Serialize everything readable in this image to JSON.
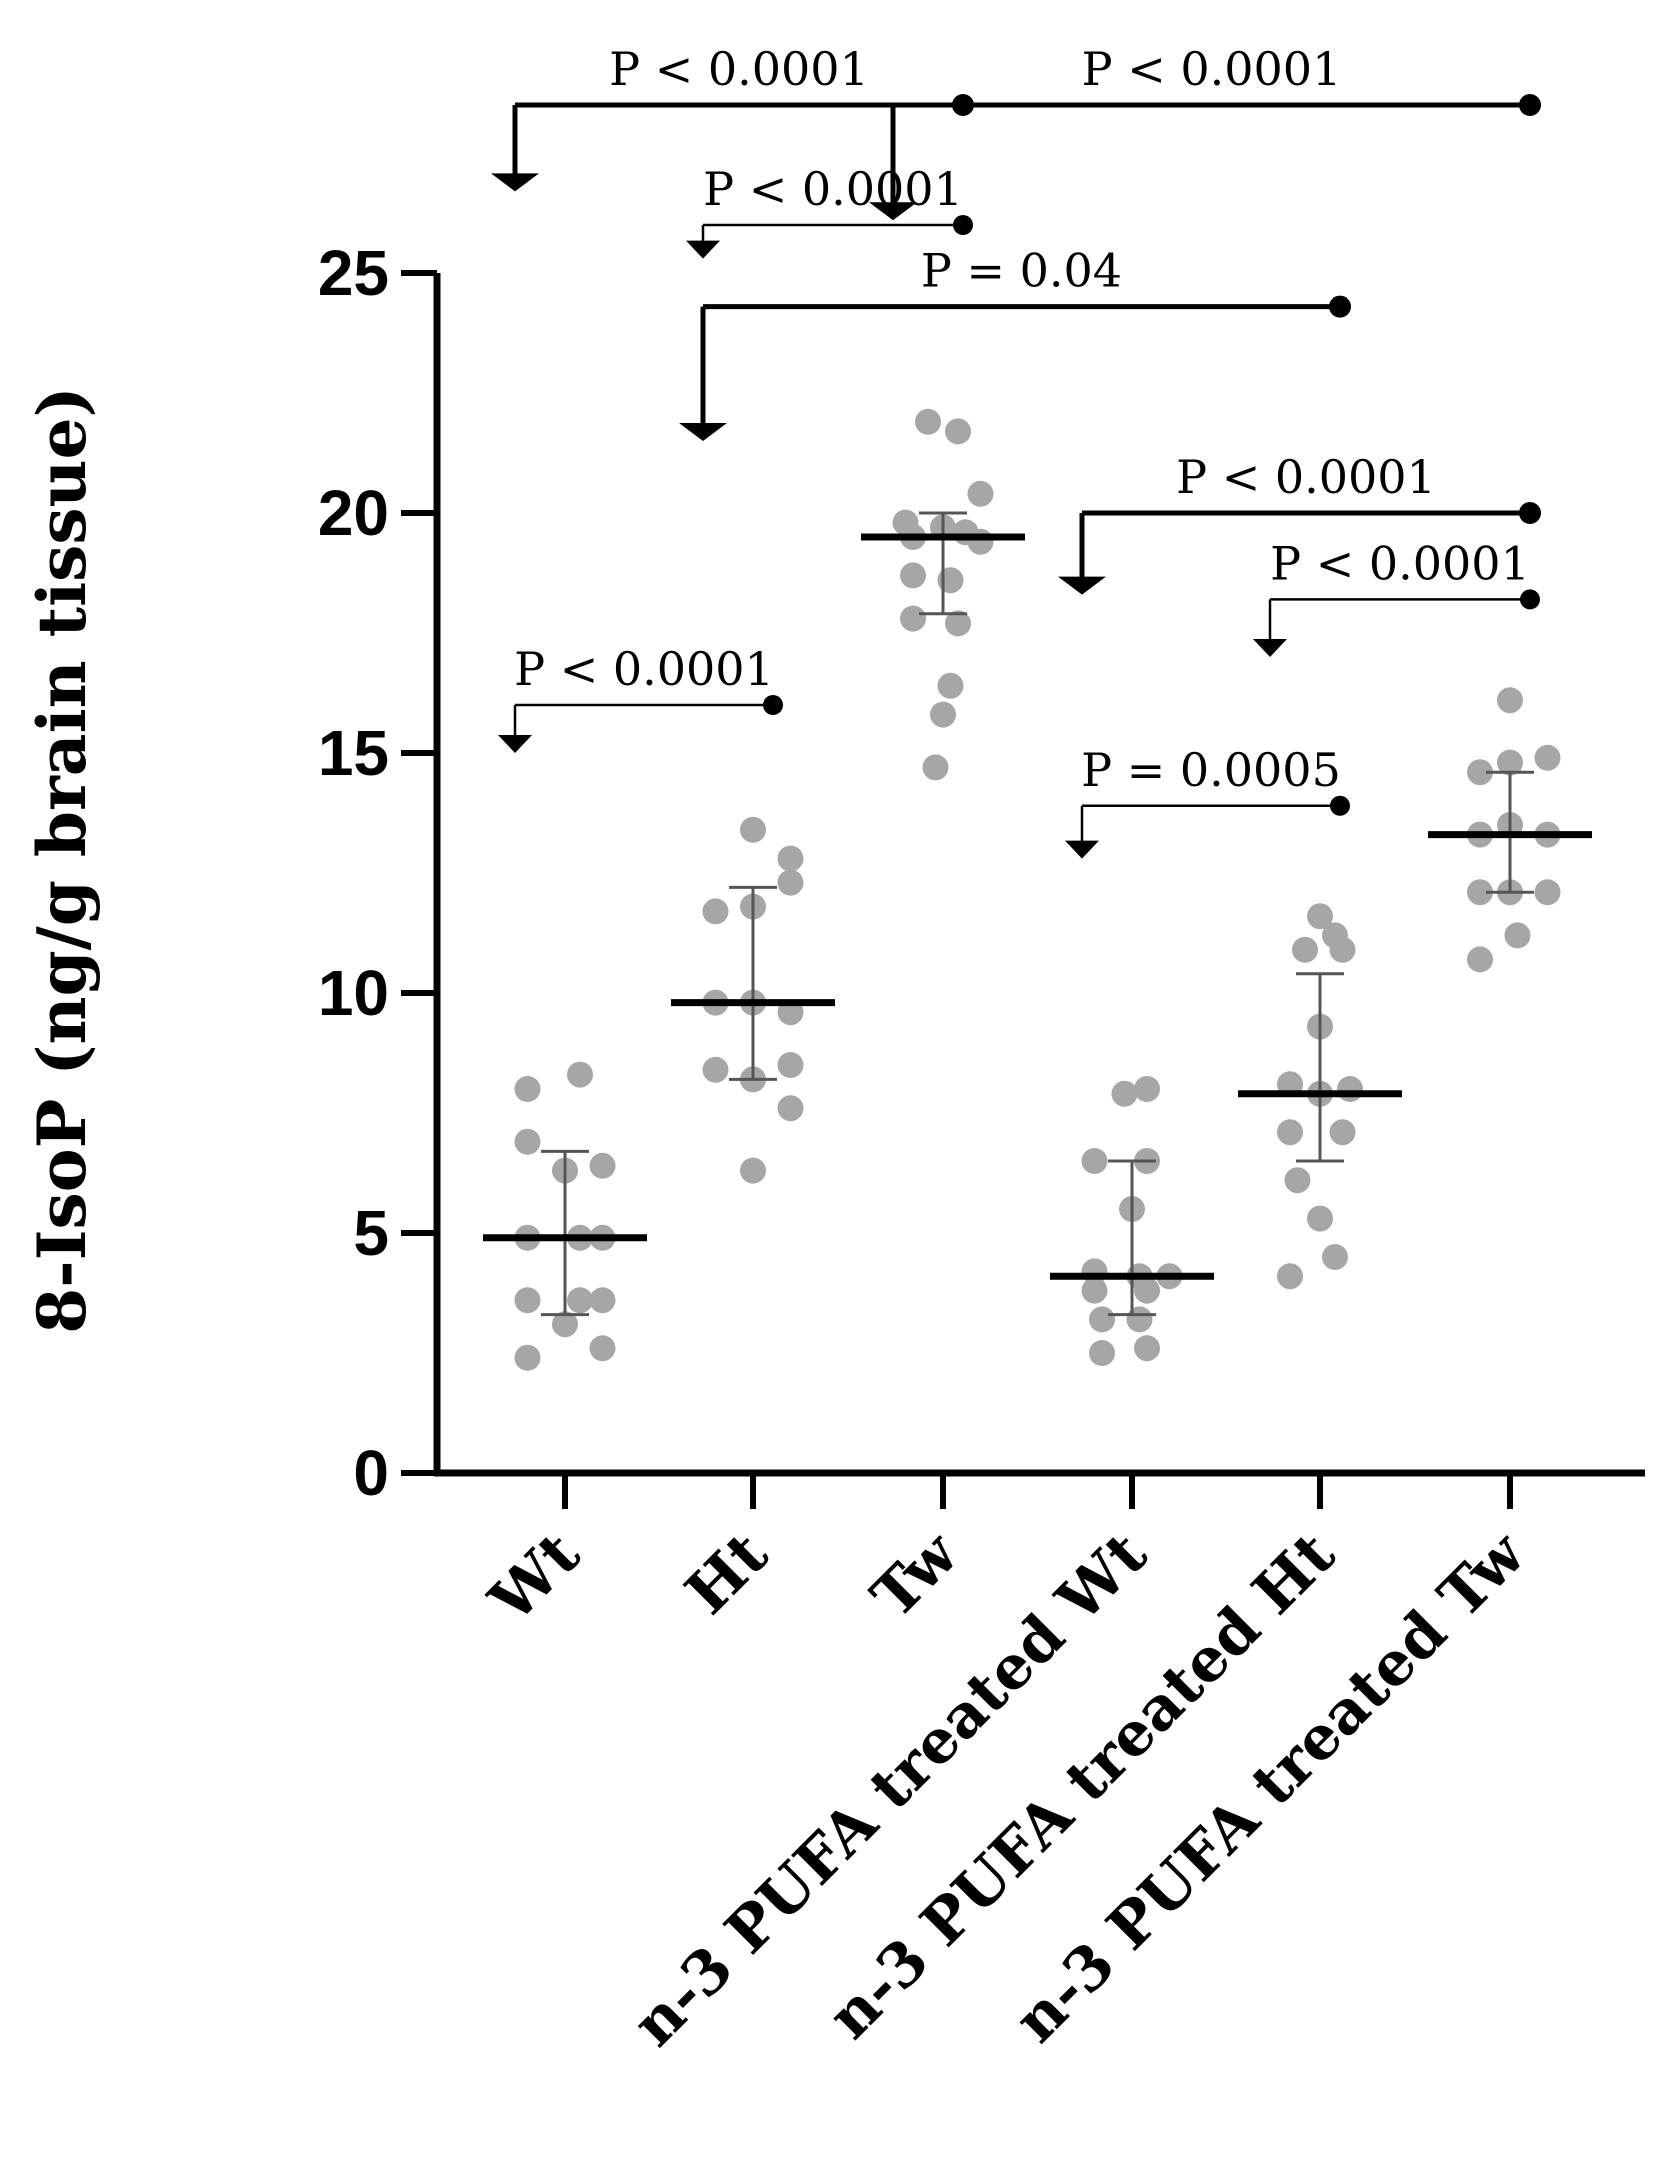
{
  "chart_data": {
    "type": "scatter",
    "title": "",
    "ylabel": "8-IsoP (ng/g brain tissue)",
    "xlabel": "",
    "ylim": [
      0,
      25
    ],
    "yticks": [
      "0",
      "5",
      "10",
      "15",
      "20",
      "25"
    ],
    "categories": [
      "Wt",
      "Ht",
      "Tw",
      "n-3 PUFA treated Wt",
      "n-3 PUFA treated Ht",
      "n-3 PUFA treated Tw"
    ],
    "colors": {
      "points": "#a6a6a6",
      "lines": "#000000",
      "error_bars": "#555555"
    },
    "groups": [
      {
        "label": "Wt",
        "mean": 4.9,
        "sd_low": 3.3,
        "sd_high": 6.7,
        "points": [
          [
            -0.25,
            8.0
          ],
          [
            0.1,
            8.3
          ],
          [
            -0.25,
            6.9
          ],
          [
            0.0,
            6.3
          ],
          [
            0.25,
            6.4
          ],
          [
            -0.25,
            4.9
          ],
          [
            0.1,
            4.9
          ],
          [
            0.25,
            4.9
          ],
          [
            -0.25,
            3.6
          ],
          [
            0.1,
            3.6
          ],
          [
            0.25,
            3.6
          ],
          [
            0.0,
            3.1
          ],
          [
            -0.25,
            2.4
          ],
          [
            0.25,
            2.6
          ]
        ]
      },
      {
        "label": "Ht",
        "mean": 9.8,
        "sd_low": 8.2,
        "sd_high": 12.2,
        "points": [
          [
            0.0,
            13.4
          ],
          [
            0.25,
            12.8
          ],
          [
            -0.25,
            11.7
          ],
          [
            0.0,
            11.8
          ],
          [
            0.25,
            12.3
          ],
          [
            -0.25,
            9.8
          ],
          [
            0.0,
            9.8
          ],
          [
            0.25,
            9.6
          ],
          [
            -0.25,
            8.4
          ],
          [
            0.25,
            8.5
          ],
          [
            0.0,
            8.2
          ],
          [
            0.25,
            7.6
          ],
          [
            0.0,
            6.3
          ]
        ]
      },
      {
        "label": "Tw",
        "mean": 19.5,
        "sd_low": 17.9,
        "sd_high": 20.0,
        "points": [
          [
            -0.1,
            21.9
          ],
          [
            0.1,
            21.7
          ],
          [
            -0.25,
            19.8
          ],
          [
            0.0,
            19.7
          ],
          [
            0.25,
            20.4
          ],
          [
            -0.2,
            19.5
          ],
          [
            0.15,
            19.6
          ],
          [
            0.25,
            19.4
          ],
          [
            -0.2,
            18.7
          ],
          [
            0.05,
            18.6
          ],
          [
            -0.2,
            17.8
          ],
          [
            0.1,
            17.7
          ],
          [
            0.05,
            16.4
          ],
          [
            0.0,
            15.8
          ],
          [
            -0.05,
            14.7
          ]
        ]
      },
      {
        "label": "n-3 PUFA treated Wt",
        "mean": 4.1,
        "sd_low": 3.3,
        "sd_high": 6.5,
        "points": [
          [
            0.1,
            8.0
          ],
          [
            -0.05,
            7.9
          ],
          [
            -0.25,
            6.5
          ],
          [
            0.1,
            6.5
          ],
          [
            0.0,
            5.5
          ],
          [
            -0.25,
            4.2
          ],
          [
            0.05,
            4.1
          ],
          [
            0.25,
            4.1
          ],
          [
            -0.25,
            3.8
          ],
          [
            0.1,
            3.8
          ],
          [
            -0.2,
            3.2
          ],
          [
            0.05,
            3.2
          ],
          [
            -0.2,
            2.5
          ],
          [
            0.1,
            2.6
          ]
        ]
      },
      {
        "label": "n-3 PUFA treated Ht",
        "mean": 7.9,
        "sd_low": 6.5,
        "sd_high": 10.4,
        "points": [
          [
            0.0,
            11.6
          ],
          [
            0.1,
            11.2
          ],
          [
            -0.1,
            10.9
          ],
          [
            0.15,
            10.9
          ],
          [
            0.0,
            9.3
          ],
          [
            -0.2,
            8.1
          ],
          [
            0.2,
            8.0
          ],
          [
            0.0,
            7.9
          ],
          [
            -0.2,
            7.1
          ],
          [
            0.15,
            7.1
          ],
          [
            -0.15,
            6.1
          ],
          [
            0.0,
            5.3
          ],
          [
            0.1,
            4.5
          ],
          [
            -0.2,
            4.1
          ]
        ]
      },
      {
        "label": "n-3 PUFA treated Tw",
        "mean": 13.3,
        "sd_low": 12.1,
        "sd_high": 14.6,
        "points": [
          [
            0.0,
            16.1
          ],
          [
            0.25,
            14.9
          ],
          [
            0.0,
            14.8
          ],
          [
            -0.2,
            14.6
          ],
          [
            -0.2,
            13.3
          ],
          [
            0.0,
            13.5
          ],
          [
            0.25,
            13.3
          ],
          [
            -0.2,
            12.1
          ],
          [
            0.0,
            12.1
          ],
          [
            0.25,
            12.1
          ],
          [
            0.05,
            11.2
          ],
          [
            -0.2,
            10.7
          ]
        ]
      }
    ],
    "comparisons": [
      {
        "label": "P < 0.0001",
        "from": "Tw",
        "to": "Wt",
        "bracket_y": 28.5,
        "drop_to": 26.7,
        "dot_y": 28.5,
        "weight": "heavy"
      },
      {
        "label": "P < 0.0001",
        "from": "n-3 PUFA treated Tw",
        "to": "Tw",
        "bracket_y": 28.5,
        "drop_to": 26.1,
        "dot_y": 28.5,
        "weight": "heavy"
      },
      {
        "label": "P < 0.0001",
        "from": "Tw",
        "to": "Ht",
        "bracket_y": 26.0,
        "drop_to": 25.3,
        "dot_y": 26.0,
        "weight": "thin"
      },
      {
        "label": "P = 0.04",
        "from": "n-3 PUFA treated Ht",
        "to": "Ht",
        "bracket_y": 24.3,
        "drop_to": 21.5,
        "dot_y": 24.3,
        "weight": "heavy"
      },
      {
        "label": "P < 0.0001",
        "from": "n-3 PUFA treated Tw",
        "to": "n-3 PUFA treated Wt",
        "bracket_y": 20.0,
        "drop_to": 18.3,
        "dot_y": 20.0,
        "weight": "heavy"
      },
      {
        "label": "P < 0.0001",
        "from": "n-3 PUFA treated Tw",
        "to": "n-3 PUFA treated Ht",
        "bracket_y": 18.2,
        "drop_to": 17.0,
        "dot_y": 18.2,
        "weight": "thin"
      },
      {
        "label": "P < 0.0001",
        "from": "Ht",
        "to": "Wt",
        "bracket_y": 16.0,
        "drop_to": 15.0,
        "dot_y": 16.0,
        "weight": "thin"
      },
      {
        "label": "P = 0.0005",
        "from": "n-3 PUFA treated Ht",
        "to": "n-3 PUFA treated Wt",
        "bracket_y": 13.9,
        "drop_to": 12.8,
        "dot_y": 13.9,
        "weight": "thin"
      }
    ],
    "grid": false,
    "legend": "none"
  }
}
